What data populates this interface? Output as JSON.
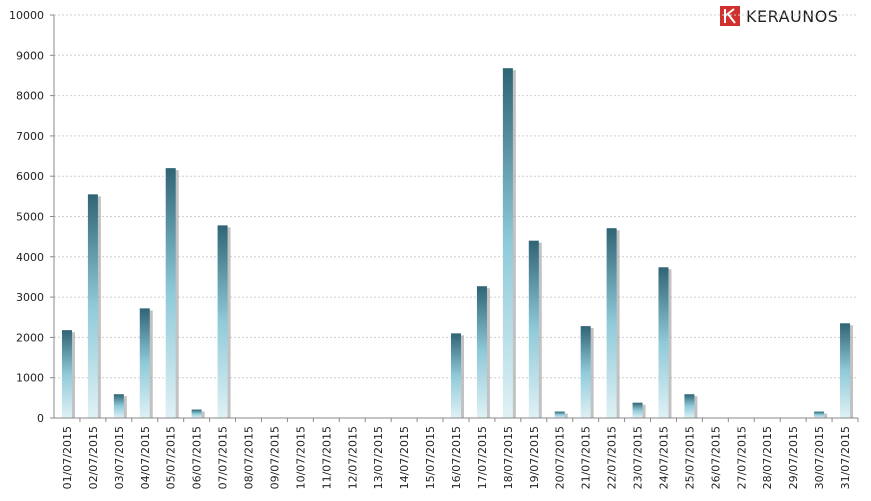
{
  "brand": {
    "name": "KERAUNOS"
  },
  "colors": {
    "bar_dark": "#2f6475",
    "bar_mid": "#8fcad9",
    "bar_light": "#d8eef3",
    "shadow": "#9a9a9a",
    "grid": "#cfcfcf"
  },
  "chart_data": {
    "type": "bar",
    "categories": [
      "01/07/2015",
      "02/07/2015",
      "03/07/2015",
      "04/07/2015",
      "05/07/2015",
      "06/07/2015",
      "07/07/2015",
      "08/07/2015",
      "09/07/2015",
      "10/07/2015",
      "11/07/2015",
      "12/07/2015",
      "13/07/2015",
      "14/07/2015",
      "15/07/2015",
      "16/07/2015",
      "17/07/2015",
      "18/07/2015",
      "19/07/2015",
      "20/07/2015",
      "21/07/2015",
      "22/07/2015",
      "23/07/2015",
      "24/07/2015",
      "25/07/2015",
      "26/07/2015",
      "27/07/2015",
      "28/07/2015",
      "29/07/2015",
      "30/07/2015",
      "31/07/2015"
    ],
    "values": [
      2180,
      5550,
      590,
      2720,
      6200,
      210,
      4780,
      0,
      0,
      0,
      0,
      0,
      0,
      0,
      0,
      2100,
      3270,
      8680,
      4400,
      160,
      2280,
      4710,
      380,
      3740,
      590,
      0,
      0,
      0,
      0,
      160,
      2350
    ],
    "yticks": [
      "0",
      "1000",
      "2000",
      "3000",
      "4000",
      "5000",
      "6000",
      "7000",
      "8000",
      "9000",
      "10000"
    ],
    "ylim": [
      0,
      10000
    ],
    "grid": true,
    "legend": "none",
    "title": "",
    "xlabel": "",
    "ylabel": ""
  }
}
